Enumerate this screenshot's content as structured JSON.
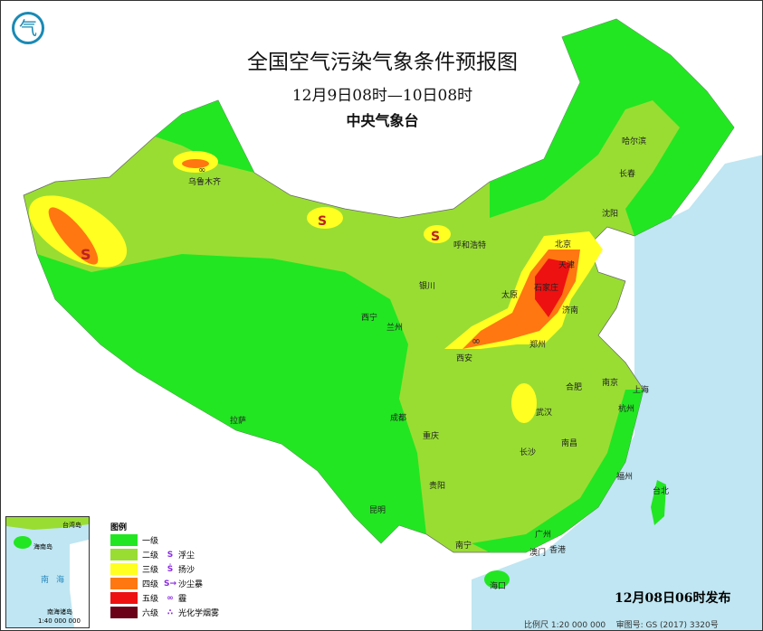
{
  "header": {
    "title": "全国空气污染气象条件预报图",
    "period": "12月9日08时—10日08时",
    "issuer": "中央气象台"
  },
  "colors": {
    "level1": "#22e622",
    "level2": "#99dd33",
    "level3": "#ffff22",
    "level4": "#ff7711",
    "level5": "#ee1111",
    "level6": "#6b0019",
    "sea": "#bfe6f2"
  },
  "cities": [
    {
      "name": "乌鲁木齐",
      "px": "207",
      "py": "193"
    },
    {
      "name": "哈尔滨",
      "px": "686",
      "py": "148"
    },
    {
      "name": "长春",
      "px": "683",
      "py": "184"
    },
    {
      "name": "沈阳",
      "px": "664",
      "py": "228"
    },
    {
      "name": "北京",
      "px": "612",
      "py": "262"
    },
    {
      "name": "天津",
      "px": "616",
      "py": "285"
    },
    {
      "name": "呼和浩特",
      "px": "500",
      "py": "263"
    },
    {
      "name": "石家庄",
      "px": "589",
      "py": "310"
    },
    {
      "name": "太原",
      "px": "553",
      "py": "318"
    },
    {
      "name": "济南",
      "px": "620",
      "py": "335"
    },
    {
      "name": "银川",
      "px": "462",
      "py": "308"
    },
    {
      "name": "西宁",
      "px": "398",
      "py": "343"
    },
    {
      "name": "兰州",
      "px": "426",
      "py": "354"
    },
    {
      "name": "西安",
      "px": "503",
      "py": "388"
    },
    {
      "name": "郑州",
      "px": "584",
      "py": "373"
    },
    {
      "name": "南京",
      "px": "664",
      "py": "415"
    },
    {
      "name": "上海",
      "px": "698",
      "py": "423"
    },
    {
      "name": "合肥",
      "px": "624",
      "py": "420"
    },
    {
      "name": "杭州",
      "px": "682",
      "py": "444"
    },
    {
      "name": "武汉",
      "px": "591",
      "py": "448"
    },
    {
      "name": "成都",
      "px": "430",
      "py": "454"
    },
    {
      "name": "重庆",
      "px": "466",
      "py": "474"
    },
    {
      "name": "拉萨",
      "px": "253",
      "py": "457"
    },
    {
      "name": "长沙",
      "px": "573",
      "py": "492"
    },
    {
      "name": "南昌",
      "px": "619",
      "py": "482"
    },
    {
      "name": "福州",
      "px": "680",
      "py": "519"
    },
    {
      "name": "贵阳",
      "px": "473",
      "py": "529"
    },
    {
      "name": "昆明",
      "px": "407",
      "py": "556"
    },
    {
      "name": "南宁",
      "px": "502",
      "py": "595"
    },
    {
      "name": "广州",
      "px": "590",
      "py": "583"
    },
    {
      "name": "澳门",
      "px": "584",
      "py": "603"
    },
    {
      "name": "香港",
      "px": "606",
      "py": "600"
    },
    {
      "name": "台北",
      "px": "720",
      "py": "535"
    },
    {
      "name": "海口",
      "px": "540",
      "py": "640"
    }
  ],
  "legend": {
    "title": "图例",
    "items": [
      {
        "level": "一级",
        "color": "#22e622",
        "symbol": "",
        "symbol_label": ""
      },
      {
        "level": "二级",
        "color": "#99dd33",
        "symbol": "S",
        "symbol_label": "浮尘"
      },
      {
        "level": "三级",
        "color": "#ffff22",
        "symbol": "Ṡ",
        "symbol_label": "扬沙"
      },
      {
        "level": "四级",
        "color": "#ff7711",
        "symbol": "S→",
        "symbol_label": "沙尘暴"
      },
      {
        "level": "五级",
        "color": "#ee1111",
        "symbol": "∞",
        "symbol_label": "霾"
      },
      {
        "level": "六级",
        "color": "#6b0019",
        "symbol": "∴",
        "symbol_label": "光化学烟雾"
      }
    ]
  },
  "inset": {
    "labels": [
      "台湾岛",
      "海南岛",
      "南海",
      "南海诸岛"
    ],
    "scale": "1:40 000 000"
  },
  "footer": {
    "published": "12月08日06时发布",
    "scale": "比例尺 1:20 000 000",
    "map_number": "审图号: GS (2017) 3320号"
  },
  "logo": {
    "glyph": "气"
  }
}
